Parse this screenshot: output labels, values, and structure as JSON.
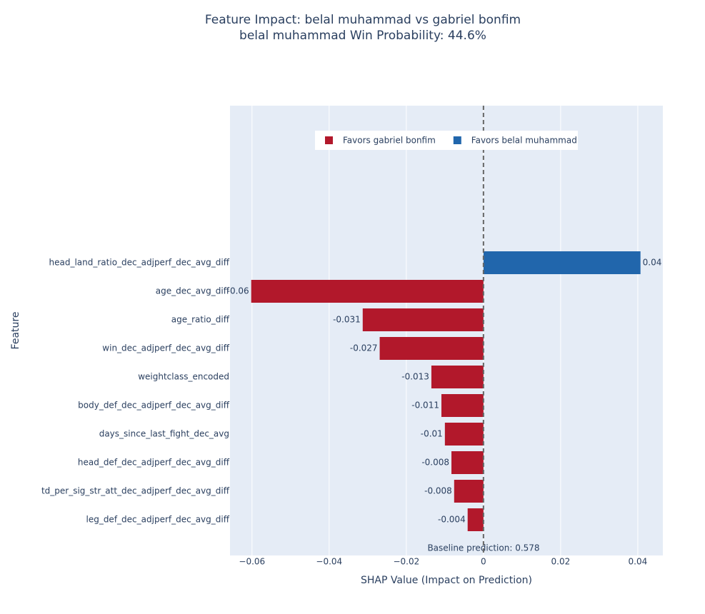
{
  "chart_data": {
    "type": "bar",
    "orientation": "horizontal",
    "title": "Feature Impact: belal muhammad vs gabriel bonfim",
    "subtitle": "belal muhammad Win Probability: 44.6%",
    "x_label": "SHAP Value (Impact on Prediction)",
    "y_label": "Feature",
    "annotation": "Baseline prediction: 0.578",
    "categories": [
      "head_land_ratio_dec_adjperf_dec_avg_diff",
      "age_dec_avg_diff",
      "age_ratio_diff",
      "win_dec_adjperf_dec_avg_diff",
      "weightclass_encoded",
      "body_def_dec_adjperf_dec_avg_diff",
      "days_since_last_fight_dec_avg",
      "head_def_dec_adjperf_dec_avg_diff",
      "td_per_sig_str_att_dec_adjperf_dec_avg_diff",
      "leg_def_dec_adjperf_dec_avg_diff"
    ],
    "series": [
      {
        "name": "Favors gabriel bonfim",
        "color": "#b2182b",
        "values": [
          null,
          -0.0602,
          -0.0313,
          -0.0269,
          -0.0135,
          -0.0109,
          -0.01,
          -0.0083,
          -0.0076,
          -0.0041
        ],
        "value_labels": [
          null,
          "-0.06",
          "-0.031",
          "-0.027",
          "-0.013",
          "-0.011",
          "-0.01",
          "-0.008",
          "-0.008",
          "-0.004"
        ]
      },
      {
        "name": "Favors belal muhammad",
        "color": "#2166ac",
        "values": [
          0.0407,
          null,
          null,
          null,
          null,
          null,
          null,
          null,
          null,
          null
        ],
        "value_labels": [
          "0.04",
          null,
          null,
          null,
          null,
          null,
          null,
          null,
          null,
          null
        ]
      }
    ],
    "xlim": [
      -0.0657,
      0.0465
    ],
    "xticks": [
      {
        "value": -0.06,
        "label": "−0.06"
      },
      {
        "value": -0.04,
        "label": "−0.04"
      },
      {
        "value": -0.02,
        "label": "−0.02"
      },
      0,
      0.02,
      0.04
    ],
    "grid": true,
    "legend_position": "top"
  }
}
